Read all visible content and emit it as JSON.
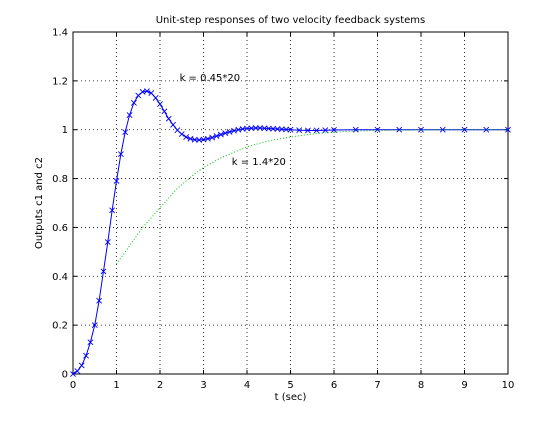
{
  "chart_data": {
    "type": "line",
    "title": "Unit-step responses of two velocity feedback systems",
    "xlabel": "t (sec)",
    "ylabel": "Outputs c1 and c2",
    "xlim": [
      0,
      10
    ],
    "ylim": [
      0,
      1.4
    ],
    "x_ticks": [
      "0",
      "1",
      "2",
      "3",
      "4",
      "5",
      "6",
      "7",
      "8",
      "9",
      "10"
    ],
    "y_ticks": [
      "0",
      "0.2",
      "0.4",
      "0.6",
      "0.8",
      "1",
      "1.2",
      "1.4"
    ],
    "grid": true,
    "series": [
      {
        "color": "#0000ff",
        "line": "solid",
        "marker": "x",
        "points": [
          [
            0,
            0
          ],
          [
            0.1,
            0.012
          ],
          [
            0.2,
            0.035
          ],
          [
            0.3,
            0.075
          ],
          [
            0.4,
            0.13
          ],
          [
            0.5,
            0.2
          ],
          [
            0.6,
            0.3
          ],
          [
            0.7,
            0.42
          ],
          [
            0.8,
            0.54
          ],
          [
            0.9,
            0.67
          ],
          [
            1.0,
            0.79
          ],
          [
            1.1,
            0.9
          ],
          [
            1.2,
            0.99
          ],
          [
            1.3,
            1.06
          ],
          [
            1.4,
            1.11
          ],
          [
            1.5,
            1.14
          ],
          [
            1.6,
            1.155
          ],
          [
            1.7,
            1.158
          ],
          [
            1.8,
            1.15
          ],
          [
            1.9,
            1.13
          ],
          [
            2.0,
            1.105
          ],
          [
            2.1,
            1.075
          ],
          [
            2.2,
            1.045
          ],
          [
            2.3,
            1.02
          ],
          [
            2.4,
            0.998
          ],
          [
            2.5,
            0.982
          ],
          [
            2.6,
            0.97
          ],
          [
            2.7,
            0.963
          ],
          [
            2.8,
            0.959
          ],
          [
            2.9,
            0.958
          ],
          [
            3.0,
            0.96
          ],
          [
            3.1,
            0.963
          ],
          [
            3.2,
            0.968
          ],
          [
            3.3,
            0.974
          ],
          [
            3.4,
            0.98
          ],
          [
            3.5,
            0.986
          ],
          [
            3.6,
            0.991
          ],
          [
            3.7,
            0.996
          ],
          [
            3.8,
            1.0
          ],
          [
            3.9,
            1.003
          ],
          [
            4.0,
            1.005
          ],
          [
            4.1,
            1.006
          ],
          [
            4.2,
            1.007
          ],
          [
            4.3,
            1.007
          ],
          [
            4.4,
            1.006
          ],
          [
            4.5,
            1.005
          ],
          [
            4.6,
            1.004
          ],
          [
            4.7,
            1.003
          ],
          [
            4.8,
            1.002
          ],
          [
            4.9,
            1.001
          ],
          [
            5.0,
            1.0
          ],
          [
            5.2,
            0.998
          ],
          [
            5.4,
            0.997
          ],
          [
            5.6,
            0.997
          ],
          [
            5.8,
            0.998
          ],
          [
            6.0,
            0.999
          ],
          [
            6.5,
            1.0
          ],
          [
            7.0,
            1.0
          ],
          [
            7.5,
            1.0
          ],
          [
            8.0,
            1.0
          ],
          [
            8.5,
            1.0
          ],
          [
            9.0,
            1.0
          ],
          [
            9.5,
            1.0
          ],
          [
            10.0,
            1.0
          ]
        ]
      },
      {
        "color": "#00bb00",
        "line": "dotted",
        "marker": "none",
        "points": [
          [
            1.0,
            0.45
          ],
          [
            1.2,
            0.5
          ],
          [
            1.4,
            0.55
          ],
          [
            1.6,
            0.6
          ],
          [
            1.8,
            0.64
          ],
          [
            2.0,
            0.68
          ],
          [
            2.2,
            0.72
          ],
          [
            2.4,
            0.76
          ],
          [
            2.6,
            0.79
          ],
          [
            2.8,
            0.82
          ],
          [
            3.0,
            0.845
          ],
          [
            3.2,
            0.865
          ],
          [
            3.4,
            0.885
          ],
          [
            3.6,
            0.9
          ],
          [
            3.8,
            0.915
          ],
          [
            4.0,
            0.93
          ],
          [
            4.3,
            0.945
          ],
          [
            4.6,
            0.958
          ],
          [
            5.0,
            0.97
          ],
          [
            5.4,
            0.98
          ],
          [
            5.8,
            0.987
          ],
          [
            6.2,
            0.992
          ],
          [
            6.6,
            0.995
          ],
          [
            7.0,
            0.997
          ],
          [
            8.0,
            0.999
          ],
          [
            9.0,
            1.0
          ],
          [
            10.0,
            1.0
          ]
        ]
      }
    ],
    "annotations": [
      {
        "text": "k = 0.45*20",
        "x": 2.45,
        "y": 1.2
      },
      {
        "text": "k = 1.4*20",
        "x": 3.65,
        "y": 0.855
      }
    ]
  }
}
